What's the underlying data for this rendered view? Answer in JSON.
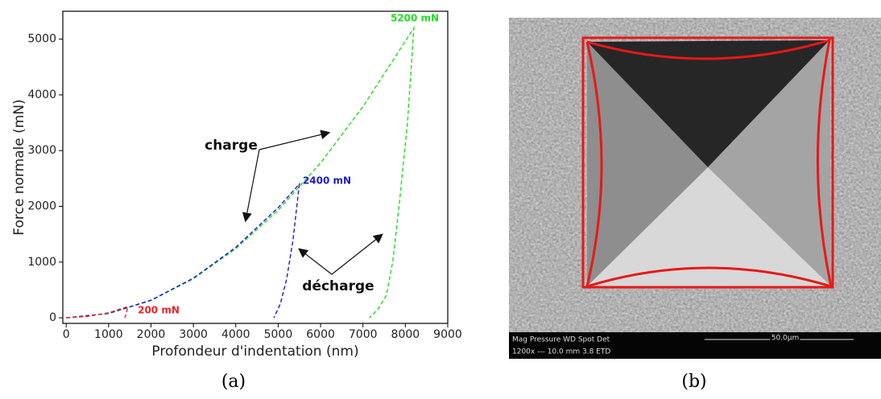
{
  "chart_data": {
    "type": "line",
    "x_label": "Profondeur d'indentation (nm)",
    "y_label": "Force normale (mN)",
    "xlim": [
      -80,
      9000
    ],
    "ylim": [
      -100,
      5500
    ],
    "xticks": [
      0,
      1000,
      2000,
      3000,
      4000,
      5000,
      6000,
      7000,
      8000,
      9000
    ],
    "yticks": [
      0,
      1000,
      2000,
      3000,
      4000,
      5000
    ],
    "series": [
      {
        "label": "5200 mN",
        "color": "#22dd22",
        "x": [
          0,
          1000,
          2000,
          3000,
          4000,
          5000,
          6000,
          7000,
          8200,
          8050,
          7850,
          7700,
          7550,
          7350,
          7150
        ],
        "values": [
          0,
          77,
          310,
          700,
          1240,
          1930,
          2780,
          3790,
          5200,
          3500,
          2000,
          1000,
          400,
          150,
          0
        ]
      },
      {
        "label": "2400 mN",
        "color": "#1a1acc",
        "x": [
          0,
          1000,
          2000,
          3000,
          4000,
          5000,
          5500,
          5350,
          5200,
          5050,
          4900
        ],
        "values": [
          0,
          79,
          316,
          711,
          1264,
          1975,
          2400,
          1400,
          700,
          250,
          0
        ]
      },
      {
        "label": "200 mN",
        "color": "#ee2222",
        "x": [
          0,
          500,
          1000,
          1450,
          1420,
          1380
        ],
        "values": [
          0,
          25,
          90,
          200,
          80,
          0
        ]
      }
    ],
    "annotations": [
      "charge",
      "décharge"
    ]
  },
  "panel_labels": [
    "(a)",
    "(b)"
  ],
  "image_b": {
    "info_bar": [
      "Mag  Pressure   WD    Spot Det",
      "1200x    ---    10.0 mm  3.8  ETD",
      "50.0µm"
    ]
  }
}
